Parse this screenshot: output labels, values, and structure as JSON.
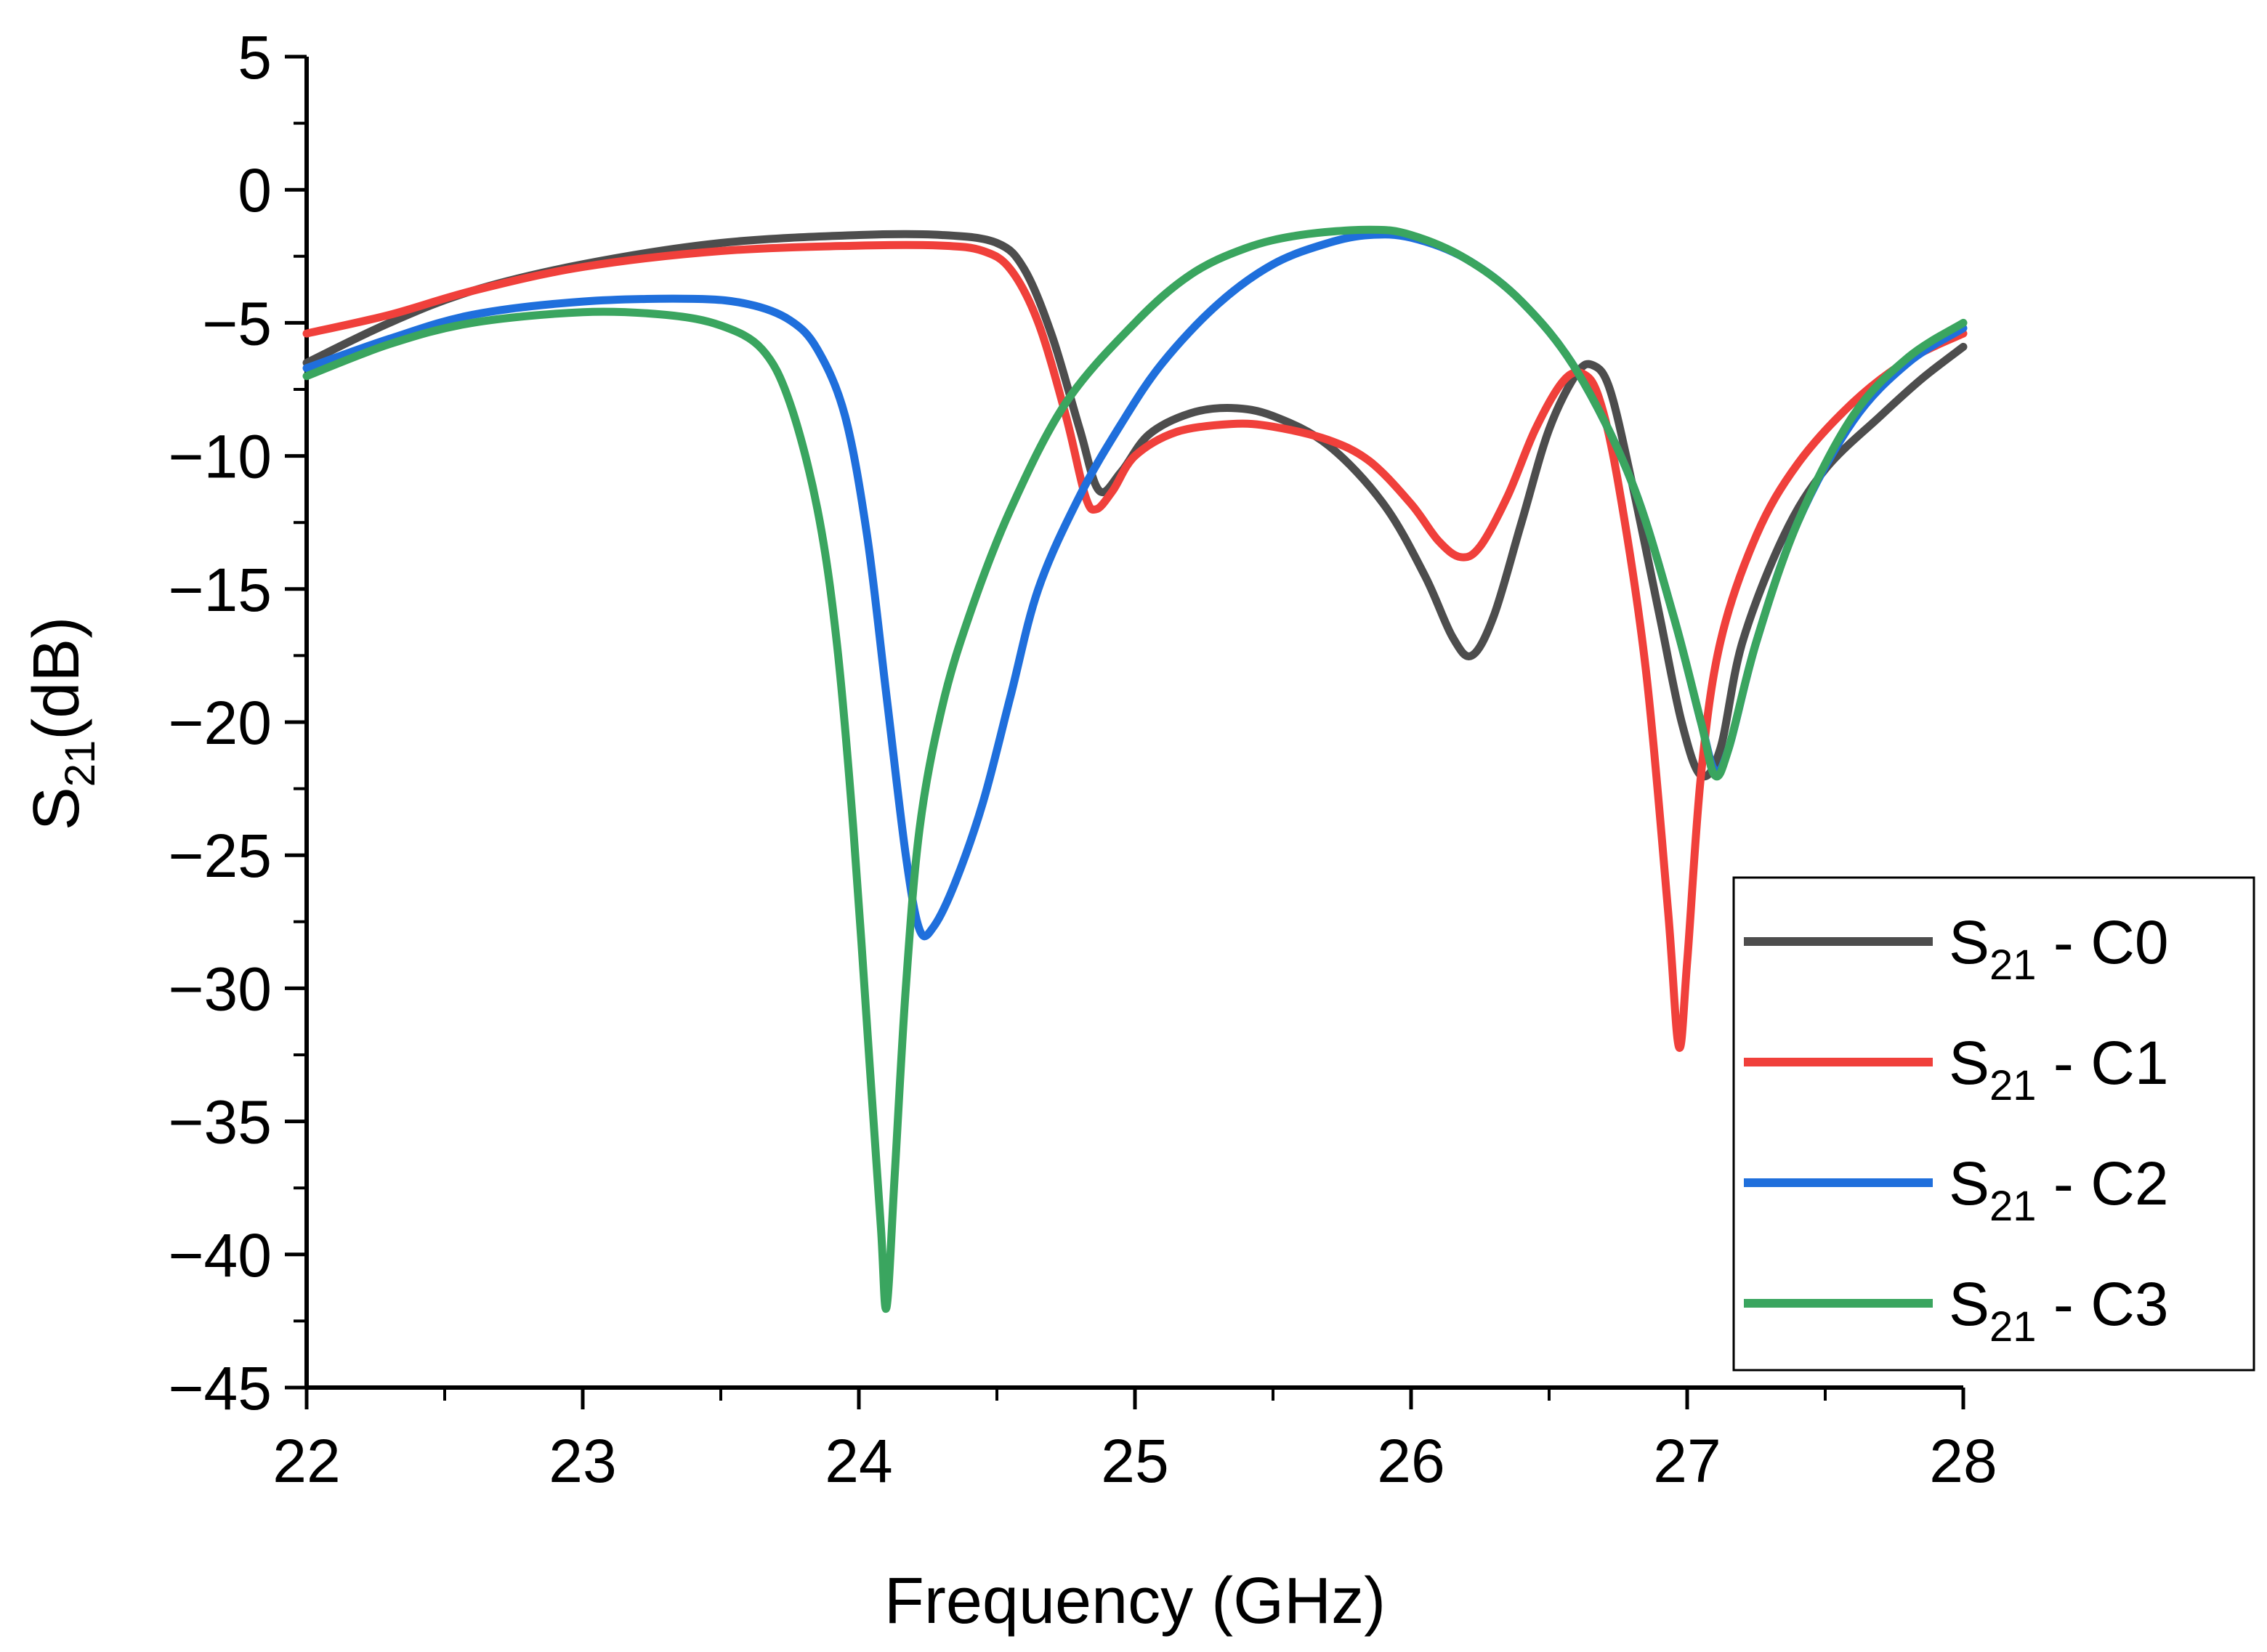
{
  "chart_data": {
    "type": "line",
    "title": "",
    "xlabel": "Frequency (GHz)",
    "ylabel": {
      "main": "S",
      "sub": "21",
      "suffix": "(dB)"
    },
    "xlim": [
      22,
      28
    ],
    "ylim": [
      -45,
      5
    ],
    "xticks": [
      22,
      23,
      24,
      25,
      26,
      27,
      28
    ],
    "xtick_labels": [
      "22",
      "23",
      "24",
      "25",
      "26",
      "27",
      "28"
    ],
    "yticks": [
      5,
      0,
      -5,
      -10,
      -15,
      -20,
      -25,
      -30,
      -35,
      -40,
      -45
    ],
    "ytick_labels": [
      "5",
      "0",
      "−10",
      "−15"
    ],
    "ytick_labels_full": [
      "5",
      "0",
      "−5",
      "−10",
      "−15",
      "−20",
      "−25",
      "−30",
      "−35",
      "−40",
      "−45"
    ],
    "grid": false,
    "legend_position": "bottom-right",
    "series": [
      {
        "name": "S21 - C0",
        "label_main": "S",
        "label_sub": "21",
        "label_suffix": " - C0",
        "color": "#4d4d4d",
        "points": [
          [
            22,
            -6.5
          ],
          [
            22.3,
            -5
          ],
          [
            22.6,
            -3.8
          ],
          [
            23,
            -2.8
          ],
          [
            23.5,
            -2
          ],
          [
            24,
            -1.7
          ],
          [
            24.3,
            -1.7
          ],
          [
            24.5,
            -2
          ],
          [
            24.6,
            -3
          ],
          [
            24.7,
            -5.5
          ],
          [
            24.8,
            -9
          ],
          [
            24.87,
            -11.3
          ],
          [
            24.95,
            -10.6
          ],
          [
            25.05,
            -9.2
          ],
          [
            25.2,
            -8.4
          ],
          [
            25.35,
            -8.2
          ],
          [
            25.5,
            -8.5
          ],
          [
            25.7,
            -9.6
          ],
          [
            25.9,
            -11.8
          ],
          [
            26.05,
            -14.5
          ],
          [
            26.15,
            -16.8
          ],
          [
            26.22,
            -17.5
          ],
          [
            26.3,
            -16
          ],
          [
            26.4,
            -12.5
          ],
          [
            26.5,
            -9
          ],
          [
            26.6,
            -6.9
          ],
          [
            26.66,
            -6.6
          ],
          [
            26.72,
            -7.5
          ],
          [
            26.8,
            -11
          ],
          [
            26.9,
            -16
          ],
          [
            26.98,
            -20
          ],
          [
            27.05,
            -22
          ],
          [
            27.12,
            -21
          ],
          [
            27.2,
            -17
          ],
          [
            27.35,
            -13
          ],
          [
            27.5,
            -10.5
          ],
          [
            27.7,
            -8.5
          ],
          [
            27.85,
            -7.1
          ],
          [
            28,
            -5.9
          ]
        ]
      },
      {
        "name": "S21 - C1",
        "label_main": "S",
        "label_sub": "21",
        "label_suffix": " - C1",
        "color": "#f0403b",
        "points": [
          [
            22,
            -5.4
          ],
          [
            22.3,
            -4.7
          ],
          [
            22.6,
            -3.8
          ],
          [
            23,
            -2.9
          ],
          [
            23.5,
            -2.3
          ],
          [
            24,
            -2.1
          ],
          [
            24.3,
            -2.1
          ],
          [
            24.45,
            -2.3
          ],
          [
            24.55,
            -3
          ],
          [
            24.65,
            -5
          ],
          [
            24.75,
            -8.5
          ],
          [
            24.82,
            -11.5
          ],
          [
            24.86,
            -12
          ],
          [
            24.92,
            -11.3
          ],
          [
            25,
            -10
          ],
          [
            25.15,
            -9.1
          ],
          [
            25.35,
            -8.8
          ],
          [
            25.5,
            -8.9
          ],
          [
            25.7,
            -9.4
          ],
          [
            25.85,
            -10.2
          ],
          [
            26,
            -11.8
          ],
          [
            26.1,
            -13.2
          ],
          [
            26.18,
            -13.8
          ],
          [
            26.25,
            -13.4
          ],
          [
            26.35,
            -11.5
          ],
          [
            26.45,
            -9
          ],
          [
            26.55,
            -7.2
          ],
          [
            26.62,
            -6.9
          ],
          [
            26.68,
            -7.8
          ],
          [
            26.75,
            -11
          ],
          [
            26.85,
            -18
          ],
          [
            26.93,
            -27
          ],
          [
            26.97,
            -32.2
          ],
          [
            27,
            -29
          ],
          [
            27.05,
            -22
          ],
          [
            27.12,
            -17
          ],
          [
            27.25,
            -13
          ],
          [
            27.4,
            -10.3
          ],
          [
            27.6,
            -8
          ],
          [
            27.8,
            -6.4
          ],
          [
            28,
            -5.4
          ]
        ]
      },
      {
        "name": "S21 - C2",
        "label_main": "S",
        "label_sub": "21",
        "label_suffix": " - C2",
        "color": "#1f6fdc",
        "points": [
          [
            22,
            -6.7
          ],
          [
            22.3,
            -5.6
          ],
          [
            22.6,
            -4.7
          ],
          [
            23,
            -4.2
          ],
          [
            23.4,
            -4.1
          ],
          [
            23.6,
            -4.3
          ],
          [
            23.75,
            -4.9
          ],
          [
            23.85,
            -6
          ],
          [
            23.95,
            -8.5
          ],
          [
            24.03,
            -13
          ],
          [
            24.1,
            -19
          ],
          [
            24.17,
            -25
          ],
          [
            24.22,
            -27.8
          ],
          [
            24.27,
            -27.7
          ],
          [
            24.35,
            -26
          ],
          [
            24.45,
            -23
          ],
          [
            24.55,
            -19
          ],
          [
            24.65,
            -15
          ],
          [
            24.8,
            -11.5
          ],
          [
            24.95,
            -8.8
          ],
          [
            25.1,
            -6.5
          ],
          [
            25.3,
            -4.3
          ],
          [
            25.5,
            -2.8
          ],
          [
            25.7,
            -2
          ],
          [
            25.85,
            -1.7
          ],
          [
            26,
            -1.8
          ],
          [
            26.2,
            -2.6
          ],
          [
            26.4,
            -4.2
          ],
          [
            26.6,
            -6.8
          ],
          [
            26.8,
            -11
          ],
          [
            26.95,
            -16
          ],
          [
            27.05,
            -20
          ],
          [
            27.1,
            -21.8
          ],
          [
            27.15,
            -21
          ],
          [
            27.25,
            -17
          ],
          [
            27.4,
            -12.5
          ],
          [
            27.6,
            -8.7
          ],
          [
            27.8,
            -6.5
          ],
          [
            28,
            -5.2
          ]
        ]
      },
      {
        "name": "S21 - C3",
        "label_main": "S",
        "label_sub": "21",
        "label_suffix": " - C3",
        "color": "#3aa55f",
        "points": [
          [
            22,
            -7
          ],
          [
            22.3,
            -5.8
          ],
          [
            22.6,
            -5
          ],
          [
            23,
            -4.6
          ],
          [
            23.3,
            -4.7
          ],
          [
            23.5,
            -5.1
          ],
          [
            23.65,
            -6
          ],
          [
            23.75,
            -8
          ],
          [
            23.85,
            -12
          ],
          [
            23.92,
            -17
          ],
          [
            23.98,
            -24
          ],
          [
            24.04,
            -33
          ],
          [
            24.08,
            -39
          ],
          [
            24.1,
            -42
          ],
          [
            24.13,
            -37
          ],
          [
            24.17,
            -30
          ],
          [
            24.22,
            -24
          ],
          [
            24.3,
            -19.5
          ],
          [
            24.4,
            -16
          ],
          [
            24.55,
            -12
          ],
          [
            24.75,
            -8
          ],
          [
            25,
            -5
          ],
          [
            25.2,
            -3.2
          ],
          [
            25.4,
            -2.2
          ],
          [
            25.6,
            -1.7
          ],
          [
            25.85,
            -1.5
          ],
          [
            26,
            -1.7
          ],
          [
            26.2,
            -2.6
          ],
          [
            26.4,
            -4.2
          ],
          [
            26.6,
            -6.8
          ],
          [
            26.8,
            -11
          ],
          [
            26.95,
            -16
          ],
          [
            27.05,
            -20
          ],
          [
            27.1,
            -22
          ],
          [
            27.15,
            -21
          ],
          [
            27.25,
            -17
          ],
          [
            27.4,
            -12.5
          ],
          [
            27.6,
            -8.5
          ],
          [
            27.8,
            -6.3
          ],
          [
            28,
            -5
          ]
        ]
      }
    ]
  }
}
